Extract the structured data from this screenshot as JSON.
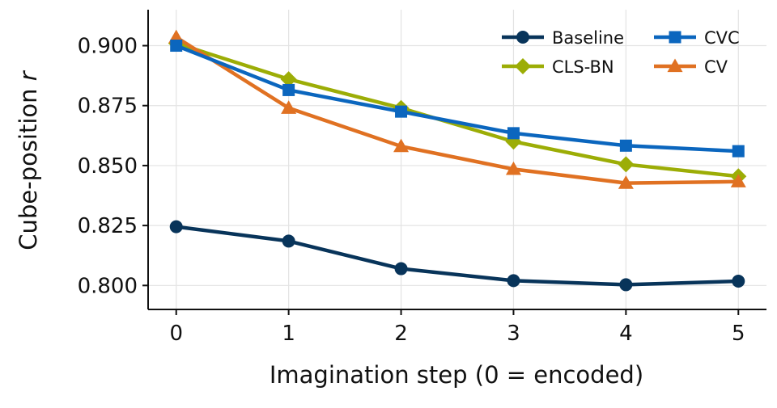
{
  "chart_data": {
    "type": "line",
    "xlabel": "Imagination step  (0 = encoded)",
    "ylabel_main": "Cube-position ",
    "ylabel_var": "r",
    "x": [
      0,
      1,
      2,
      3,
      4,
      5
    ],
    "x_ticks": [
      "0",
      "1",
      "2",
      "3",
      "4",
      "5"
    ],
    "y_ticks": [
      "0.800",
      "0.825",
      "0.850",
      "0.875",
      "0.900"
    ],
    "y_tick_values": [
      0.8,
      0.825,
      0.85,
      0.875,
      0.9
    ],
    "xlim": [
      -0.25,
      5.25
    ],
    "ylim": [
      0.79,
      0.915
    ],
    "grid": true,
    "legend_position": "top-right",
    "legend_columns": 2,
    "series": [
      {
        "name": "Baseline",
        "color": "#08345a",
        "marker": "circle",
        "values": [
          0.8245,
          0.8185,
          0.807,
          0.802,
          0.8003,
          0.8018
        ]
      },
      {
        "name": "CVC",
        "color": "#0b66be",
        "marker": "square",
        "values": [
          0.9,
          0.8815,
          0.8725,
          0.8635,
          0.8583,
          0.856
        ]
      },
      {
        "name": "CLS-BN",
        "color": "#9cad06",
        "marker": "diamond",
        "values": [
          0.901,
          0.886,
          0.874,
          0.86,
          0.8505,
          0.8455
        ]
      },
      {
        "name": "CV",
        "color": "#e07122",
        "marker": "triangle",
        "values": [
          0.9035,
          0.874,
          0.858,
          0.8485,
          0.8427,
          0.8433
        ]
      }
    ],
    "legend_order": [
      0,
      1,
      2,
      3
    ]
  }
}
